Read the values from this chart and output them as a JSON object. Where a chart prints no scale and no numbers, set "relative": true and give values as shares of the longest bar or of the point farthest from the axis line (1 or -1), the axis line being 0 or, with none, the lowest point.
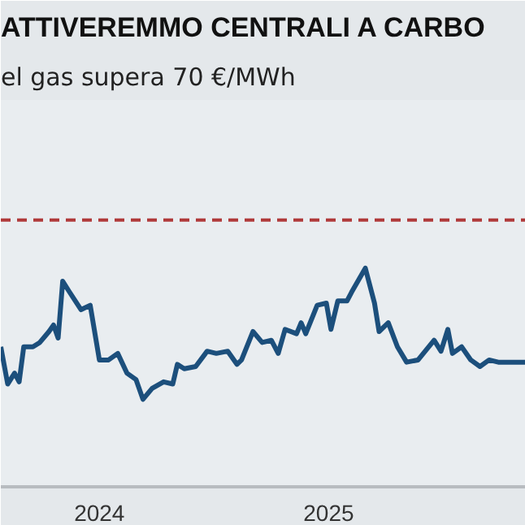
{
  "chart_data": {
    "type": "line",
    "title": "ATTIVEREMMO CENTRALI A CARBO",
    "subtitle": "el gas supera 70 €/MWh",
    "relative": true,
    "x": [
      2023.57,
      2023.6,
      2023.63,
      2023.65,
      2023.67,
      2023.71,
      2023.74,
      2023.78,
      2023.8,
      2023.82,
      2023.84,
      2023.87,
      2023.92,
      2023.96,
      2024.0,
      2024.04,
      2024.08,
      2024.12,
      2024.16,
      2024.19,
      2024.23,
      2024.28,
      2024.32,
      2024.34,
      2024.37,
      2024.42,
      2024.47,
      2024.51,
      2024.56,
      2024.6,
      2024.62,
      2024.67,
      2024.71,
      2024.75,
      2024.78,
      2024.81,
      2024.86,
      2024.88,
      2024.9,
      2024.95,
      2024.99,
      2025.01,
      2025.04,
      2025.08,
      2025.1,
      2025.16,
      2025.2,
      2025.22,
      2025.26,
      2025.3,
      2025.34,
      2025.39,
      2025.46,
      2025.49,
      2025.52,
      2025.54,
      2025.58,
      2025.62,
      2025.66,
      2025.7,
      2025.74,
      2025.8,
      2025.86
    ],
    "series": [
      {
        "color": "#1c4f7c",
        "values": [
          0.64,
          0.47,
          0.52,
          0.48,
          0.64,
          0.64,
          0.66,
          0.71,
          0.74,
          0.68,
          0.94,
          0.89,
          0.81,
          0.83,
          0.58,
          0.58,
          0.61,
          0.52,
          0.49,
          0.4,
          0.45,
          0.48,
          0.47,
          0.56,
          0.54,
          0.55,
          0.62,
          0.61,
          0.62,
          0.56,
          0.58,
          0.71,
          0.66,
          0.67,
          0.61,
          0.72,
          0.7,
          0.75,
          0.7,
          0.83,
          0.84,
          0.72,
          0.85,
          0.85,
          0.89,
          1.0,
          0.84,
          0.71,
          0.75,
          0.64,
          0.57,
          0.58,
          0.67,
          0.62,
          0.72,
          0.61,
          0.64,
          0.58,
          0.55,
          0.58,
          0.57,
          0.57,
          0.57
        ]
      }
    ],
    "xlim": [
      2023.57,
      2025.86
    ],
    "xticks": [
      2024,
      2025
    ],
    "ref_lines": [
      {
        "axis": "y",
        "value": 1.22,
        "color": "#b03a3a",
        "line_style": "dashed"
      }
    ],
    "line_style": "solid",
    "marker": "none",
    "grid": false
  }
}
